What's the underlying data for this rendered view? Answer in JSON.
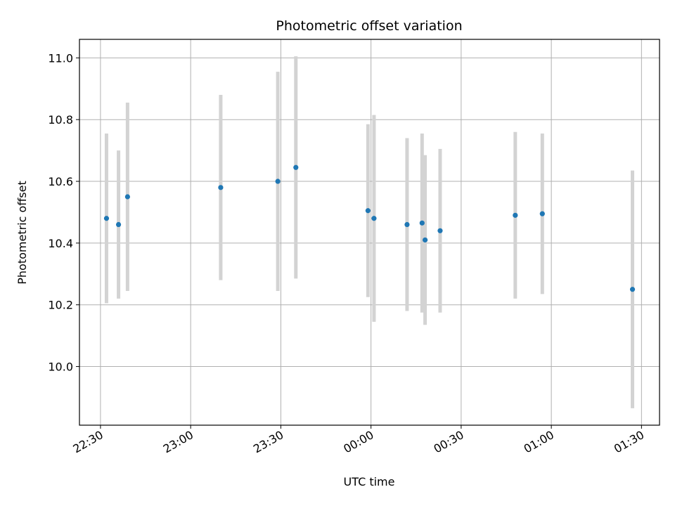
{
  "chart_data": {
    "type": "scatter",
    "title": "Photometric offset variation",
    "xlabel": "UTC time",
    "ylabel": "Photometric offset",
    "grid": true,
    "legend": "none",
    "x_ticks": [
      "22:30",
      "23:00",
      "23:30",
      "00:00",
      "00:30",
      "01:00",
      "01:30"
    ],
    "y_ticks": [
      "10.0",
      "10.2",
      "10.4",
      "10.6",
      "10.8",
      "11.0"
    ],
    "xlim": [
      "22:23",
      "01:36"
    ],
    "ylim": [
      9.81,
      11.06
    ],
    "points_color": "#1f77b4",
    "errorbar_color": "#d3d3d3",
    "points": [
      {
        "t": "22:32",
        "y": 10.48,
        "err": 0.275
      },
      {
        "t": "22:36",
        "y": 10.46,
        "err": 0.24
      },
      {
        "t": "22:39",
        "y": 10.55,
        "err": 0.305
      },
      {
        "t": "23:10",
        "y": 10.58,
        "err": 0.3
      },
      {
        "t": "23:29",
        "y": 10.6,
        "err": 0.355
      },
      {
        "t": "23:35",
        "y": 10.645,
        "err": 0.36
      },
      {
        "t": "23:59",
        "y": 10.505,
        "err": 0.28
      },
      {
        "t": "00:01",
        "y": 10.48,
        "err": 0.335
      },
      {
        "t": "00:12",
        "y": 10.46,
        "err": 0.28
      },
      {
        "t": "00:17",
        "y": 10.465,
        "err": 0.29
      },
      {
        "t": "00:18",
        "y": 10.41,
        "err": 0.275
      },
      {
        "t": "00:23",
        "y": 10.44,
        "err": 0.265
      },
      {
        "t": "00:48",
        "y": 10.49,
        "err": 0.27
      },
      {
        "t": "00:57",
        "y": 10.495,
        "err": 0.26
      },
      {
        "t": "01:27",
        "y": 10.25,
        "err": 0.385
      }
    ]
  }
}
